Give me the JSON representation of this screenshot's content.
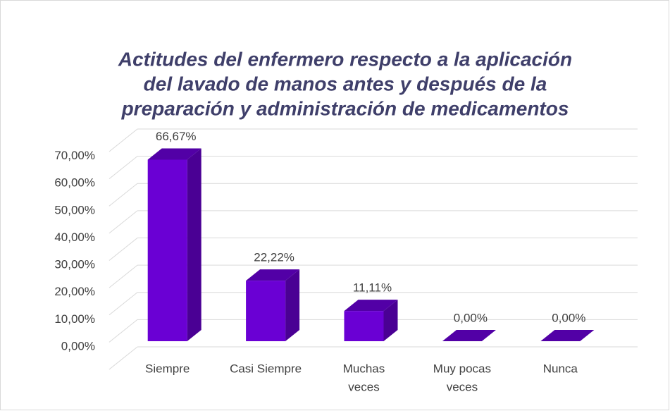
{
  "chart_data": {
    "type": "bar3d",
    "title": [
      "Actitudes del enfermero respecto a la aplicación",
      "del lavado de manos antes y después de la",
      "preparación y administración de medicamentos"
    ],
    "categories": [
      [
        "Siempre"
      ],
      [
        "Casi Siempre"
      ],
      [
        "Muchas",
        "veces"
      ],
      [
        "Muy pocas",
        "veces"
      ],
      [
        "Nunca"
      ]
    ],
    "values": [
      66.67,
      22.22,
      11.11,
      0,
      0
    ],
    "value_labels": [
      "66,67%",
      "22,22%",
      "11,11%",
      "0,00%",
      "0,00%"
    ],
    "color": "#6a00d4",
    "ylim": [
      0,
      80
    ],
    "yticks": [
      {
        "value": 0,
        "label": "0,00%"
      },
      {
        "value": 10,
        "label": "10,00%"
      },
      {
        "value": 20,
        "label": "20,00%"
      },
      {
        "value": 30,
        "label": "30,00%"
      },
      {
        "value": 40,
        "label": "40,00%"
      },
      {
        "value": 50,
        "label": "50,00%"
      },
      {
        "value": 60,
        "label": "60,00%"
      },
      {
        "value": 70,
        "label": "70,00%"
      }
    ],
    "grid": true
  }
}
